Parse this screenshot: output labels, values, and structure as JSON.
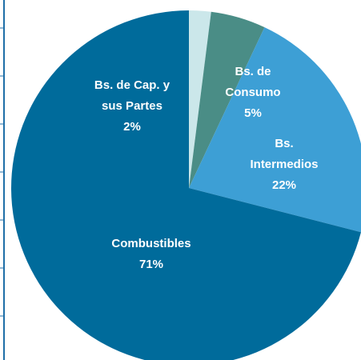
{
  "chart_data": {
    "type": "pie",
    "categories": [
      [
        "Bs. de Cap. y",
        "sus Partes"
      ],
      [
        "Bs. de",
        "Consumo"
      ],
      [
        "Bs.",
        "Intermedios"
      ],
      [
        "Combustibles"
      ]
    ],
    "values": [
      2,
      5,
      22,
      71
    ],
    "value_labels": [
      "2%",
      "5%",
      "22%",
      "71%"
    ],
    "colors": [
      "#cbe7ea",
      "#4a8d86",
      "#3d9fd5",
      "#006b9b"
    ]
  }
}
